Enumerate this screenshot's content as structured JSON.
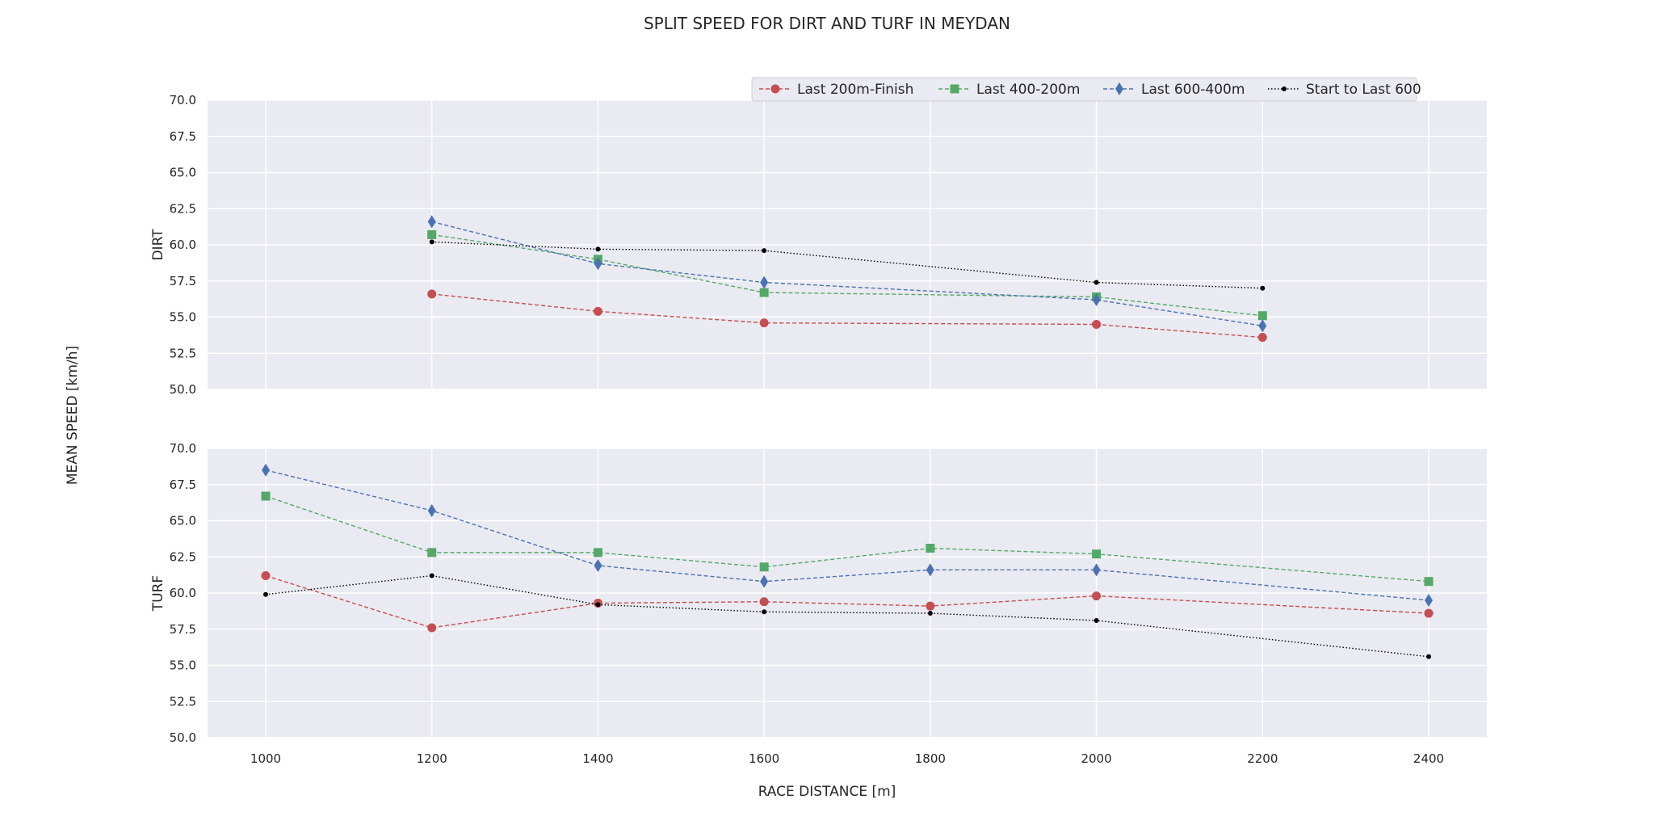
{
  "chart_data": {
    "type": "line",
    "title": "SPLIT SPEED FOR DIRT AND TURF IN MEYDAN",
    "xlabel": "RACE DISTANCE [m]",
    "ylabel": "MEAN SPEED [km/h]",
    "x_ticks": [
      1000,
      1200,
      1400,
      1600,
      1800,
      2000,
      2200,
      2400
    ],
    "xlim": [
      930,
      2470
    ],
    "ylim": [
      50,
      70
    ],
    "y_ticks": [
      50.0,
      52.5,
      55.0,
      57.5,
      60.0,
      62.5,
      65.0,
      67.5,
      70.0
    ],
    "grid": true,
    "legend_placement": "top-right",
    "legend": [
      {
        "name": "Last 200m-Finish",
        "color": "#c44e52",
        "marker": "circle",
        "dash": "dashed"
      },
      {
        "name": "Last 400-200m",
        "color": "#55a868",
        "marker": "square",
        "dash": "dashed"
      },
      {
        "name": "Last 600-400m",
        "color": "#4c72b0",
        "marker": "diamond",
        "dash": "dashed"
      },
      {
        "name": "Start to Last 600",
        "color": "#000000",
        "marker": "dot",
        "dash": "dotted"
      }
    ],
    "panels": [
      {
        "ylabel": "DIRT",
        "series": [
          {
            "name": "Last 200m-Finish",
            "x": [
              1200,
              1400,
              1600,
              2000,
              2200
            ],
            "y": [
              56.6,
              55.4,
              54.6,
              54.5,
              53.6
            ]
          },
          {
            "name": "Last 400-200m",
            "x": [
              1200,
              1400,
              1600,
              2000,
              2200
            ],
            "y": [
              60.7,
              59.0,
              56.7,
              56.4,
              55.1
            ]
          },
          {
            "name": "Last 600-400m",
            "x": [
              1200,
              1400,
              1600,
              2000,
              2200
            ],
            "y": [
              61.6,
              58.7,
              57.4,
              56.2,
              54.4
            ]
          },
          {
            "name": "Start to Last 600",
            "x": [
              1200,
              1400,
              1600,
              2000,
              2200
            ],
            "y": [
              60.2,
              59.7,
              59.6,
              57.4,
              57.0
            ]
          }
        ]
      },
      {
        "ylabel": "TURF",
        "series": [
          {
            "name": "Last 200m-Finish",
            "x": [
              1000,
              1200,
              1400,
              1600,
              1800,
              2000,
              2400
            ],
            "y": [
              61.2,
              57.6,
              59.3,
              59.4,
              59.1,
              59.8,
              58.6
            ]
          },
          {
            "name": "Last 400-200m",
            "x": [
              1000,
              1200,
              1400,
              1600,
              1800,
              2000,
              2400
            ],
            "y": [
              66.7,
              62.8,
              62.8,
              61.8,
              63.1,
              62.7,
              60.8
            ]
          },
          {
            "name": "Last 600-400m",
            "x": [
              1000,
              1200,
              1400,
              1600,
              1800,
              2000,
              2400
            ],
            "y": [
              68.5,
              65.7,
              61.9,
              60.8,
              61.6,
              61.6,
              59.5
            ]
          },
          {
            "name": "Start to Last 600",
            "x": [
              1000,
              1200,
              1400,
              1600,
              1800,
              2000,
              2400
            ],
            "y": [
              59.9,
              61.2,
              59.2,
              58.7,
              58.6,
              58.1,
              55.6
            ]
          }
        ]
      }
    ]
  }
}
